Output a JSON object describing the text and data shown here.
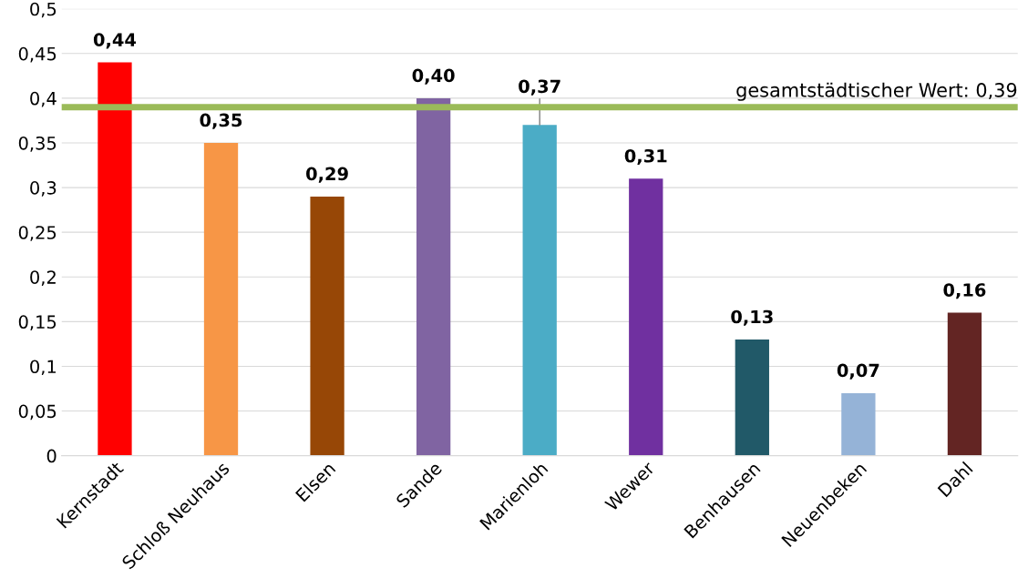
{
  "chart_data": {
    "type": "bar",
    "categories": [
      "Kernstadt",
      "Schloß Neuhaus",
      "Elsen",
      "Sande",
      "Marienloh",
      "Wewer",
      "Benhausen",
      "Neuenbeken",
      "Dahl"
    ],
    "values": [
      0.44,
      0.35,
      0.29,
      0.4,
      0.37,
      0.31,
      0.13,
      0.07,
      0.16
    ],
    "value_labels": [
      "0,44",
      "0,35",
      "0,29",
      "0,40",
      "0,37",
      "0,31",
      "0,13",
      "0,07",
      "0,16"
    ],
    "colors": [
      "#ff0000",
      "#f79646",
      "#974706",
      "#8064a2",
      "#4bacc6",
      "#7030a0",
      "#215968",
      "#95b3d7",
      "#632523"
    ],
    "ylim": [
      0,
      0.5
    ],
    "yticks": [
      0,
      {
        "value": 0.05,
        "label": "0,05"
      },
      {
        "value": 0.1,
        "label": "0,1"
      },
      {
        "value": 0.15,
        "label": "0,15"
      },
      {
        "value": 0.2,
        "label": "0,2"
      },
      {
        "value": 0.25,
        "label": "0,25"
      },
      {
        "value": 0.3,
        "label": "0,3"
      },
      {
        "value": 0.35,
        "label": "0,35"
      },
      {
        "value": 0.4,
        "label": "0,4"
      },
      {
        "value": 0.45,
        "label": "0,45"
      },
      {
        "value": 0.5,
        "label": "0,5"
      }
    ],
    "ref_lines": [
      {
        "axis": "y",
        "value": 0.39,
        "label": "gesamtstädtischer Wert: 0,39",
        "color": "#9bbb59"
      }
    ],
    "grid": "y",
    "legend": false
  }
}
